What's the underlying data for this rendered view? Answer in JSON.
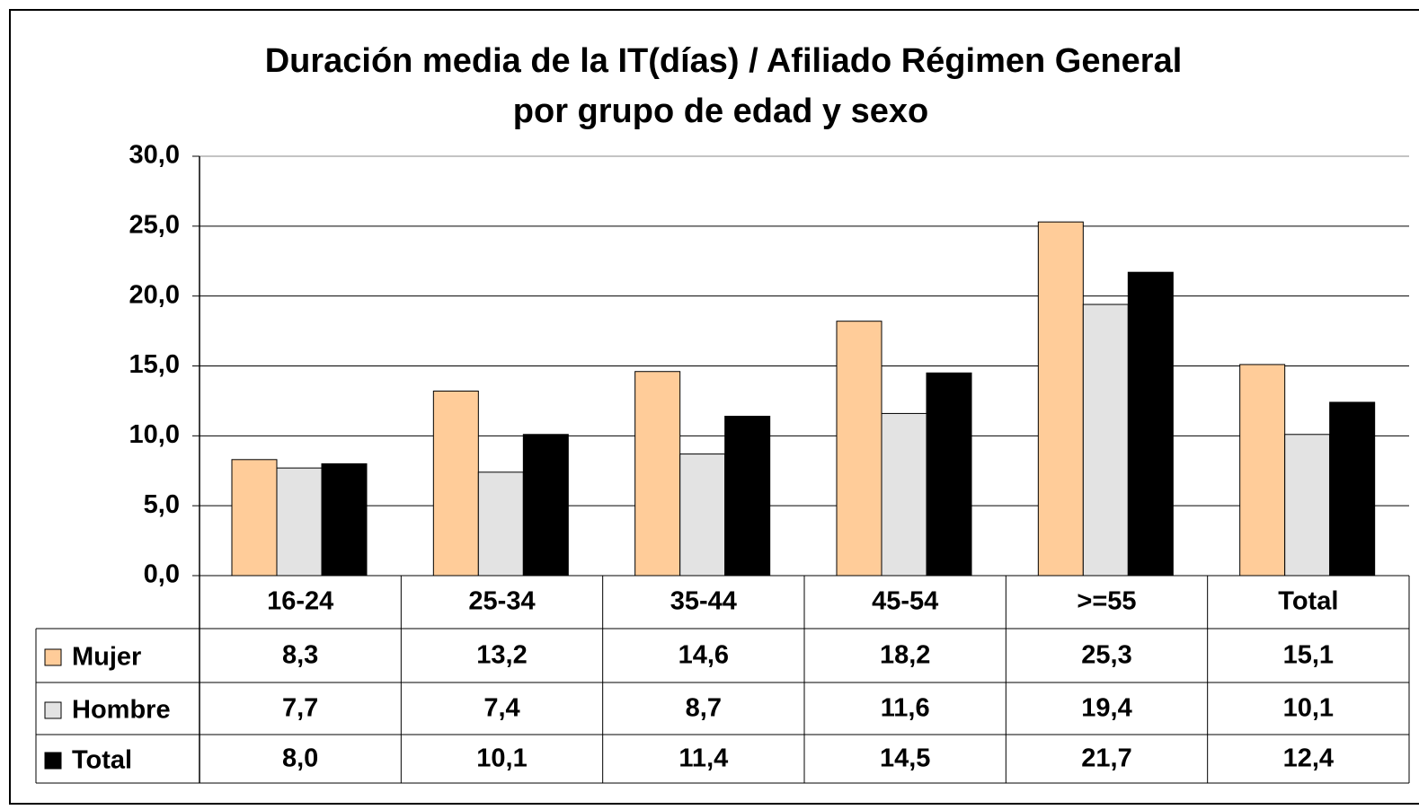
{
  "chart_data": {
    "type": "bar",
    "title": [
      "Duración media de la IT(días) / Afiliado Régimen General",
      "por grupo de edad y sexo"
    ],
    "categories": [
      "16-24",
      "25-34",
      "35-44",
      "45-54",
      ">=55",
      "Total"
    ],
    "series": [
      {
        "name": "Mujer",
        "color": "#ffcc99",
        "values": [
          8.3,
          13.2,
          14.6,
          18.2,
          25.3,
          15.1
        ],
        "value_labels": [
          "8,3",
          "13,2",
          "14,6",
          "18,2",
          "25,3",
          "15,1"
        ]
      },
      {
        "name": "Hombre",
        "color": "#e3e3e3",
        "values": [
          7.7,
          7.4,
          8.7,
          11.6,
          19.4,
          10.1
        ],
        "value_labels": [
          "7,7",
          "7,4",
          "8,7",
          "11,6",
          "19,4",
          "10,1"
        ]
      },
      {
        "name": "Total",
        "color": "#000000",
        "values": [
          8.0,
          10.1,
          11.4,
          14.5,
          21.7,
          12.4
        ],
        "value_labels": [
          "8,0",
          "10,1",
          "11,4",
          "14,5",
          "21,7",
          "12,4"
        ]
      }
    ],
    "ylim": [
      0,
      30
    ],
    "yticks": [
      {
        "value": 0,
        "label": "0,0"
      },
      {
        "value": 5,
        "label": "5,0"
      },
      {
        "value": 10,
        "label": "10,0"
      },
      {
        "value": 15,
        "label": "15,0"
      },
      {
        "value": 20,
        "label": "20,0"
      },
      {
        "value": 25,
        "label": "25,0"
      },
      {
        "value": 30,
        "label": "30,0"
      }
    ],
    "grid": true,
    "legend": "table"
  }
}
